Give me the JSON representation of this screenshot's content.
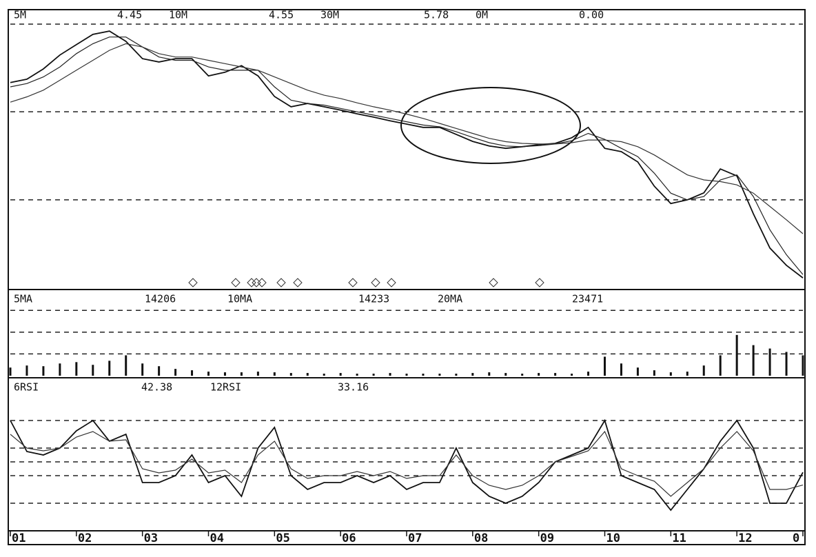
{
  "chart_data": [
    {
      "type": "line",
      "legend": [
        {
          "name": "5M",
          "value": 4.45
        },
        {
          "name": "10M",
          "value": 4.55
        },
        {
          "name": "30M",
          "value": 5.78
        },
        {
          "name": "0M",
          "value": {
            "value": 0,
            "label": "0.00"
          }
        }
      ],
      "ylim": [
        4.1,
        12.4
      ],
      "ygrid": [
        12.09,
        9.45,
        6.8
      ],
      "series": [
        {
          "color": "#111111",
          "values": [
            10.33,
            10.43,
            10.74,
            11.16,
            11.47,
            11.78,
            11.88,
            11.57,
            11.05,
            10.95,
            11.05,
            11.05,
            10.53,
            10.64,
            10.84,
            10.53,
            9.91,
            9.6,
            9.7,
            9.6,
            9.5,
            9.39,
            9.29,
            9.18,
            9.08,
            8.98,
            8.98,
            8.77,
            8.56,
            8.42,
            8.35,
            8.4,
            8.46,
            8.5,
            8.67,
            8.98,
            8.35,
            8.25,
            7.94,
            7.21,
            6.69,
            6.8,
            7.01,
            7.73,
            7.52,
            6.38,
            5.35,
            4.83,
            4.45
          ]
        },
        {
          "color": "#222222",
          "values": [
            10.2,
            10.3,
            10.5,
            10.8,
            11.2,
            11.5,
            11.7,
            11.7,
            11.4,
            11.1,
            11.0,
            11.0,
            10.8,
            10.7,
            10.7,
            10.7,
            10.2,
            9.8,
            9.7,
            9.65,
            9.55,
            9.45,
            9.35,
            9.25,
            9.15,
            9.05,
            9.0,
            8.85,
            8.68,
            8.52,
            8.42,
            8.4,
            8.43,
            8.48,
            8.58,
            8.8,
            8.62,
            8.35,
            8.1,
            7.6,
            7.0,
            6.8,
            6.9,
            7.4,
            7.55,
            6.9,
            5.9,
            5.15,
            4.55
          ]
        },
        {
          "color": "#333333",
          "values": [
            9.74,
            9.9,
            10.1,
            10.4,
            10.7,
            11.0,
            11.3,
            11.5,
            11.4,
            11.2,
            11.1,
            11.1,
            11.0,
            10.9,
            10.8,
            10.7,
            10.5,
            10.3,
            10.1,
            9.95,
            9.85,
            9.72,
            9.6,
            9.5,
            9.38,
            9.25,
            9.1,
            8.95,
            8.8,
            8.65,
            8.55,
            8.5,
            8.48,
            8.48,
            8.52,
            8.6,
            8.6,
            8.55,
            8.4,
            8.15,
            7.85,
            7.55,
            7.4,
            7.35,
            7.25,
            7.0,
            6.6,
            6.2,
            5.78
          ]
        }
      ]
    },
    {
      "type": "bar",
      "legend": [
        {
          "name": "5MA",
          "value": 14206
        },
        {
          "name": "10MA",
          "value": 14233
        },
        {
          "name": "20MA",
          "value": 23471
        }
      ],
      "ylim": [
        0,
        95000
      ],
      "ygrid": [
        25000,
        50000,
        75000
      ],
      "color": "#111111",
      "values": [
        9360,
        11700,
        10920,
        14040,
        15600,
        12480,
        17160,
        23400,
        14040,
        10920,
        7800,
        6240,
        4680,
        3900,
        3900,
        4680,
        3900,
        3120,
        3120,
        2340,
        3120,
        2340,
        2340,
        3120,
        2340,
        2340,
        2340,
        2340,
        3120,
        3900,
        3120,
        2340,
        3120,
        3120,
        2340,
        4680,
        21840,
        14040,
        9360,
        6240,
        3900,
        4680,
        11700,
        23400,
        46800,
        35100,
        31200,
        27300,
        23400
      ]
    },
    {
      "type": "line",
      "legend": [
        {
          "name": "6RSI",
          "value": 42.38
        },
        {
          "name": "12RSI",
          "value": 33.16
        }
      ],
      "ylim": [
        0,
        100
      ],
      "ygrid": [
        20,
        40,
        50,
        60,
        80
      ],
      "categories": [
        "01",
        null,
        null,
        null,
        "02",
        null,
        null,
        null,
        "03",
        null,
        null,
        null,
        "04",
        null,
        null,
        null,
        "05",
        null,
        null,
        null,
        "06",
        null,
        null,
        null,
        "07",
        null,
        null,
        null,
        "08",
        null,
        null,
        null,
        "09",
        null,
        null,
        null,
        "10",
        null,
        null,
        null,
        "11",
        null,
        null,
        null,
        "12",
        null,
        null,
        null,
        "0"
      ],
      "series": [
        {
          "color": "#111111",
          "values": [
            80,
            57.5,
            55,
            60,
            72.5,
            80,
            65,
            70,
            35,
            35,
            40,
            55,
            35,
            40,
            25,
            60,
            75,
            40,
            30,
            35,
            35,
            40,
            35,
            40,
            30,
            35,
            35,
            60,
            35,
            25,
            20,
            25,
            35,
            50,
            55,
            60,
            80,
            40,
            35,
            30,
            15,
            30,
            45,
            65,
            80,
            60,
            20,
            20,
            42.4
          ]
        },
        {
          "color": "#333333",
          "values": [
            70,
            60,
            58,
            60,
            68,
            72,
            65,
            66,
            45,
            42,
            44,
            52,
            42,
            44,
            35,
            55,
            65,
            45,
            38,
            40,
            40,
            43,
            40,
            43,
            38,
            40,
            40,
            55,
            40,
            33,
            30,
            33,
            40,
            50,
            54,
            58,
            72,
            45,
            40,
            36,
            25,
            35,
            45,
            60,
            72,
            58,
            30,
            30,
            33.2
          ]
        }
      ]
    }
  ]
}
